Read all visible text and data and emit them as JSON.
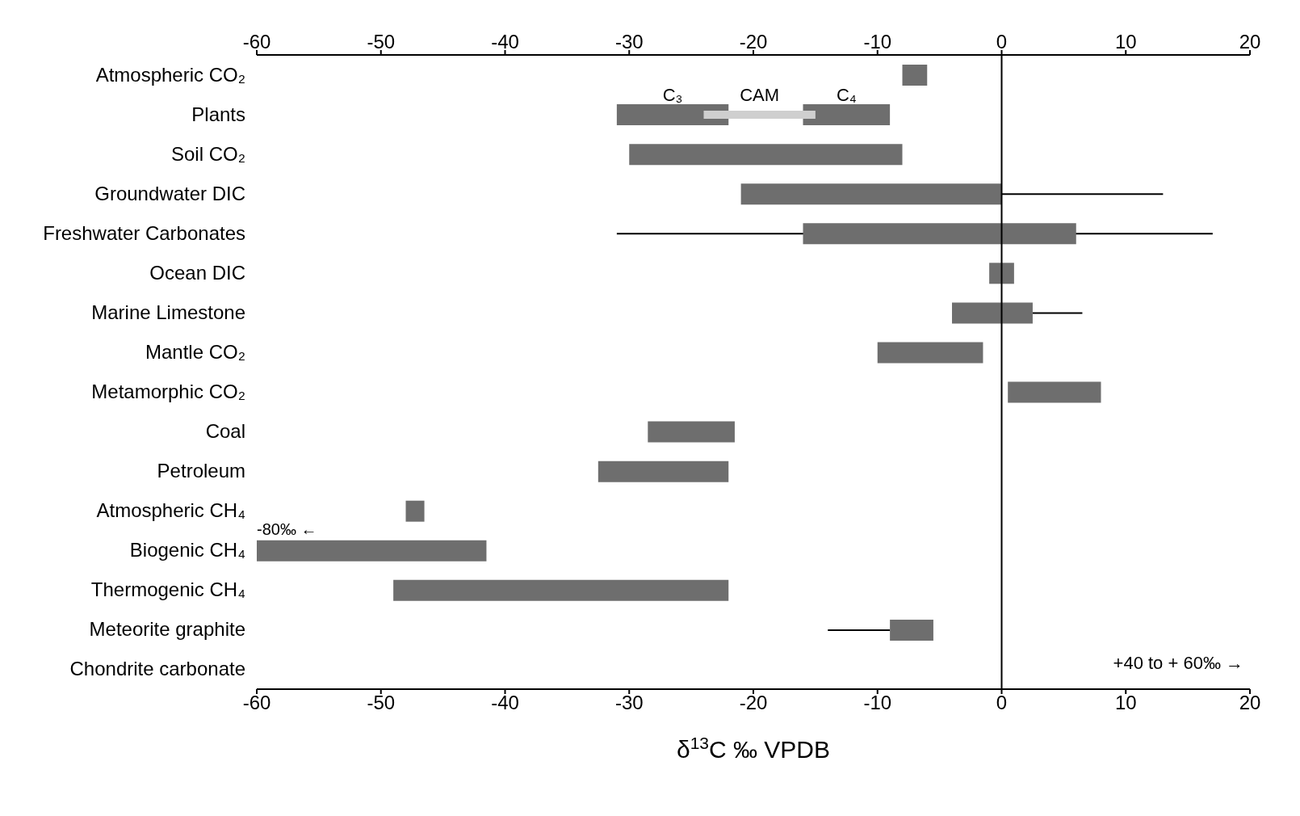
{
  "chart_data": {
    "type": "bar",
    "orientation": "horizontal",
    "xlabel": "δ$^{13}$C ‰ VPDB",
    "categories": [
      "Atmospheric CO₂",
      "Plants",
      "Soil CO₂",
      "Groundwater DIC",
      "Freshwater Carbonates",
      "Ocean DIC",
      "Marine Limestone",
      "Mantle CO₂",
      "Metamorphic CO₂",
      "Coal",
      "Petroleum",
      "Atmospheric CH₄",
      "Biogenic CH₄",
      "Thermogenic CH₄",
      "Meteorite graphite",
      "Chondrite carbonate"
    ],
    "series": [
      {
        "color": "#000000",
        "base": [
          null,
          null,
          null,
          0,
          -31,
          null,
          2.5,
          null,
          null,
          null,
          null,
          null,
          null,
          null,
          -14,
          null
        ],
        "values": [
          null,
          null,
          null,
          13,
          48,
          null,
          4,
          null,
          null,
          null,
          null,
          null,
          null,
          null,
          5,
          null
        ]
      },
      {
        "color": "#6e6e6e",
        "base": [
          -8,
          null,
          -30,
          -21,
          -16,
          -1,
          -4,
          -10,
          0.5,
          -28.5,
          -32.5,
          -48,
          -60,
          -49,
          -9,
          null
        ],
        "values": [
          2,
          null,
          22,
          21,
          22,
          2,
          6.5,
          8.5,
          7.5,
          7,
          10.5,
          1.5,
          18.5,
          27,
          3.5,
          null
        ]
      },
      {
        "name": "C₃",
        "color": "#6e6e6e",
        "base": [
          null,
          -31,
          null,
          null,
          null,
          null,
          null,
          null,
          null,
          null,
          null,
          null,
          null,
          null,
          null,
          null
        ],
        "values": [
          null,
          9,
          null,
          null,
          null,
          null,
          null,
          null,
          null,
          null,
          null,
          null,
          null,
          null,
          null,
          null
        ]
      },
      {
        "name": "C₄",
        "color": "#6e6e6e",
        "base": [
          null,
          -16,
          null,
          null,
          null,
          null,
          null,
          null,
          null,
          null,
          null,
          null,
          null,
          null,
          null,
          null
        ],
        "values": [
          null,
          7,
          null,
          null,
          null,
          null,
          null,
          null,
          null,
          null,
          null,
          null,
          null,
          null,
          null,
          null
        ]
      },
      {
        "name": "CAM",
        "color": "#cfcfcf",
        "base": [
          null,
          -24,
          null,
          null,
          null,
          null,
          null,
          null,
          null,
          null,
          null,
          null,
          null,
          null,
          null,
          null
        ],
        "values": [
          null,
          9,
          null,
          null,
          null,
          null,
          null,
          null,
          null,
          null,
          null,
          null,
          null,
          null,
          null,
          null
        ]
      }
    ],
    "xlim": [
      -60,
      20
    ],
    "xticks": [
      -60,
      -50,
      -40,
      -30,
      -20,
      -10,
      0,
      10,
      20
    ],
    "x2lim": [
      -60,
      20
    ],
    "x2ticks": [
      -60,
      -50,
      -40,
      -30,
      -20,
      -10,
      0,
      10,
      20
    ],
    "ref_lines": [
      {
        "axis": "x",
        "value": 0,
        "color": "#000000"
      }
    ],
    "annotations": [
      {
        "text": "-80‰ ←",
        "x": -60,
        "y": "Biogenic CH₄"
      },
      "+40 to + 60‰ →"
    ],
    "grid": false,
    "legend": false
  }
}
